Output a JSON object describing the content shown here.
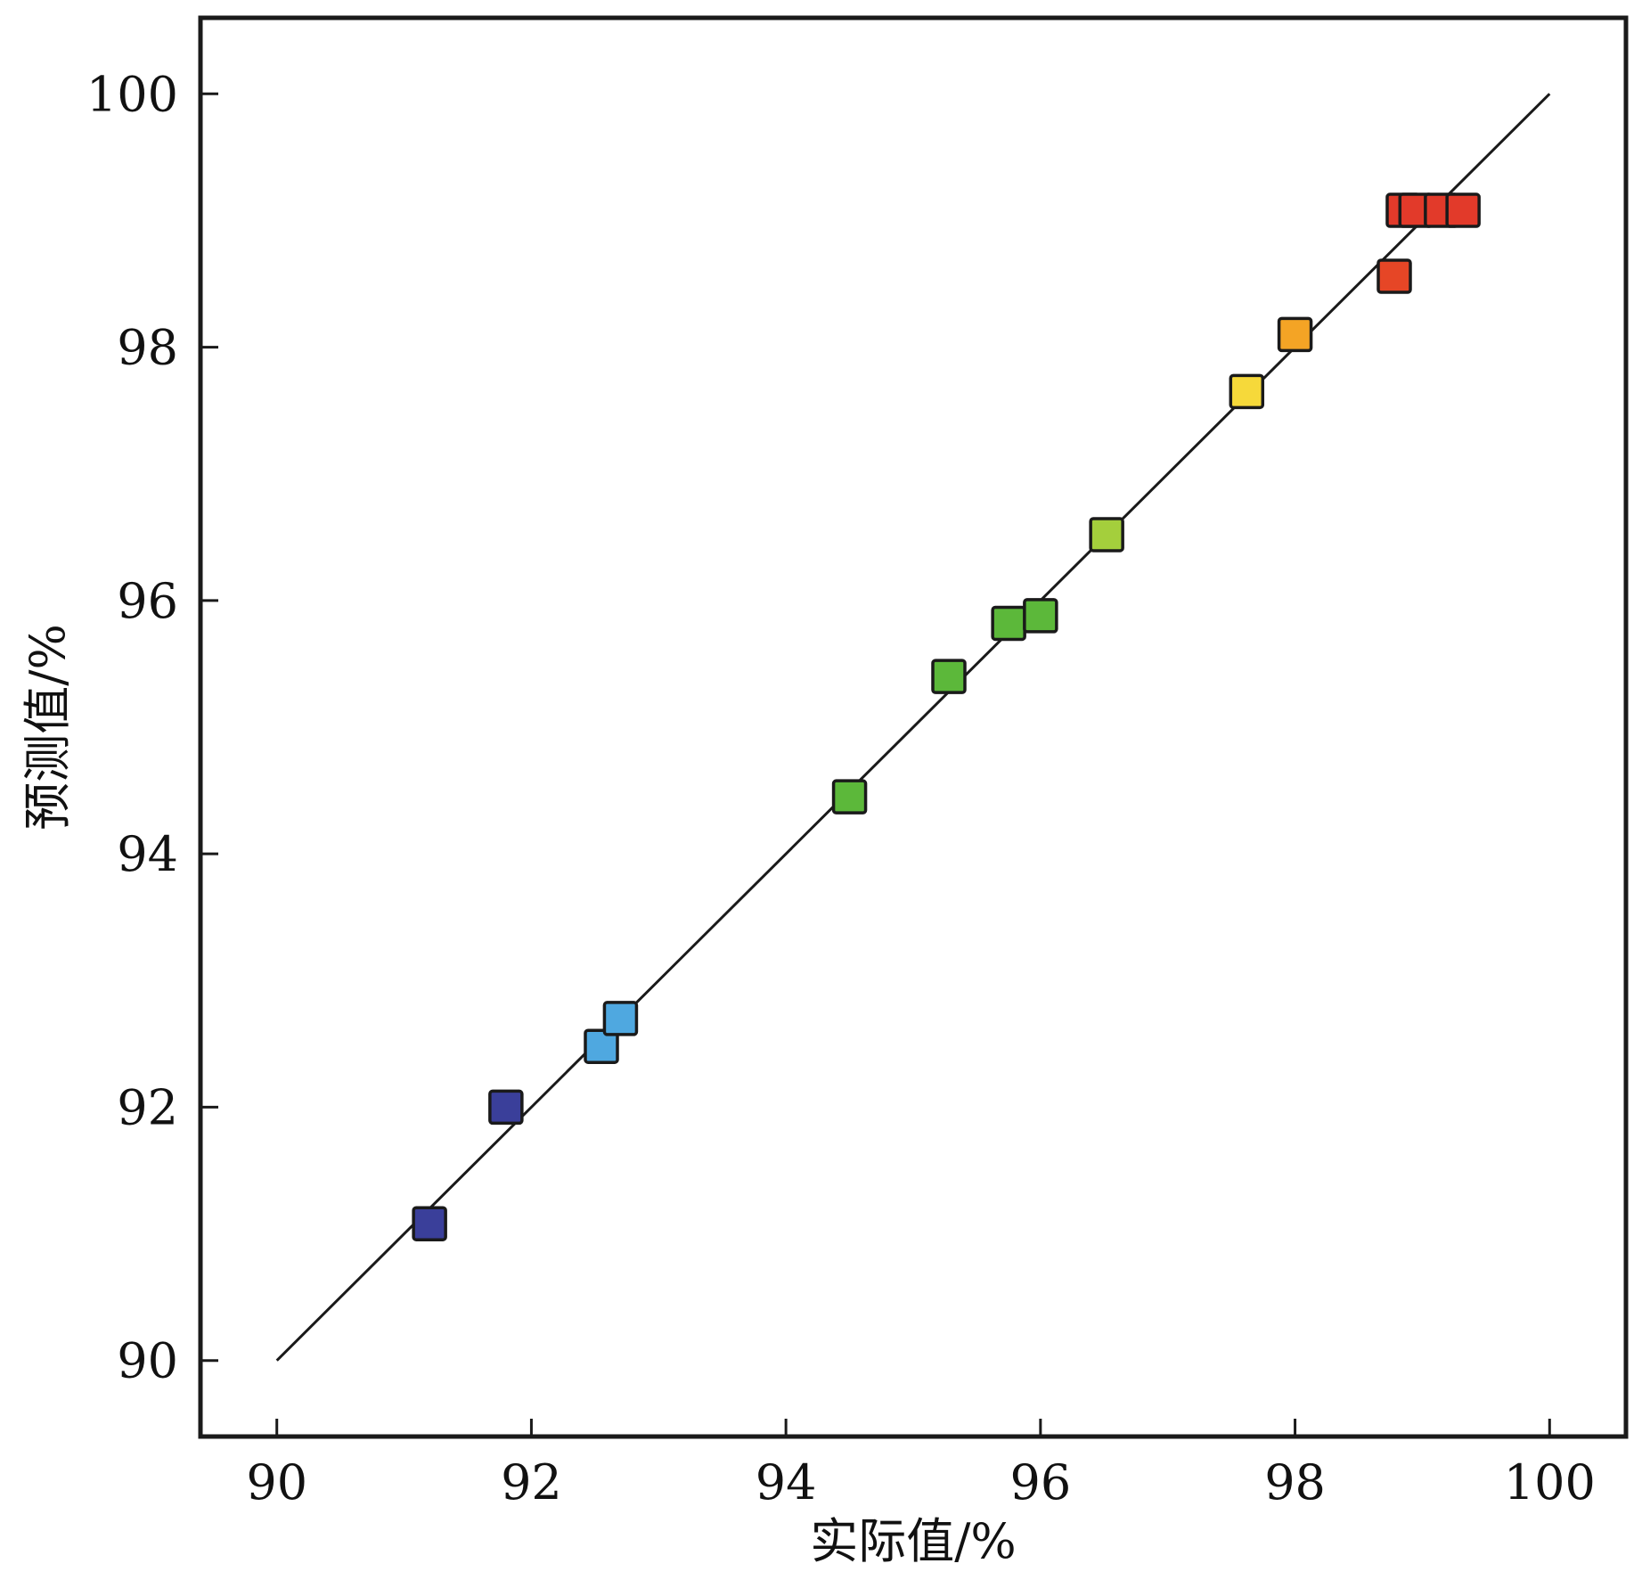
{
  "chart_data": {
    "type": "scatter",
    "xlabel": "实际值/%",
    "ylabel": "预测值/%",
    "xlim": [
      89.4,
      100.6
    ],
    "ylim": [
      89.4,
      100.6
    ],
    "xticks": [
      90,
      92,
      94,
      96,
      98,
      100
    ],
    "yticks": [
      90,
      92,
      94,
      96,
      98,
      100
    ],
    "xtick_labels": [
      "90",
      "92",
      "94",
      "96",
      "98",
      "100"
    ],
    "ytick_labels": [
      "90",
      "92",
      "94",
      "96",
      "98",
      "100"
    ],
    "grid": false,
    "reference_line": {
      "x": [
        90,
        100
      ],
      "y": [
        90,
        100
      ]
    },
    "points": [
      {
        "x": 91.2,
        "y": 91.08,
        "color": "#3a3f9a"
      },
      {
        "x": 91.8,
        "y": 92.0,
        "color": "#3a3f9a"
      },
      {
        "x": 92.55,
        "y": 92.48,
        "color": "#4fa8e0"
      },
      {
        "x": 92.7,
        "y": 92.7,
        "color": "#4fa8e0"
      },
      {
        "x": 94.5,
        "y": 94.45,
        "color": "#5cb83a"
      },
      {
        "x": 95.28,
        "y": 95.4,
        "color": "#5cb83a"
      },
      {
        "x": 95.75,
        "y": 95.82,
        "color": "#5cb83a"
      },
      {
        "x": 96.0,
        "y": 95.88,
        "color": "#5cb83a"
      },
      {
        "x": 96.52,
        "y": 96.52,
        "color": "#a4cf3c"
      },
      {
        "x": 97.62,
        "y": 97.65,
        "color": "#f6d93a"
      },
      {
        "x": 98.0,
        "y": 98.1,
        "color": "#f4a425"
      },
      {
        "x": 98.78,
        "y": 98.56,
        "color": "#e64626"
      },
      {
        "x": 98.85,
        "y": 99.08,
        "color": "#e23a2a"
      },
      {
        "x": 98.95,
        "y": 99.08,
        "color": "#e23a2a"
      },
      {
        "x": 99.15,
        "y": 99.08,
        "color": "#e23a2a"
      },
      {
        "x": 99.32,
        "y": 99.08,
        "color": "#e23a2a"
      }
    ]
  }
}
